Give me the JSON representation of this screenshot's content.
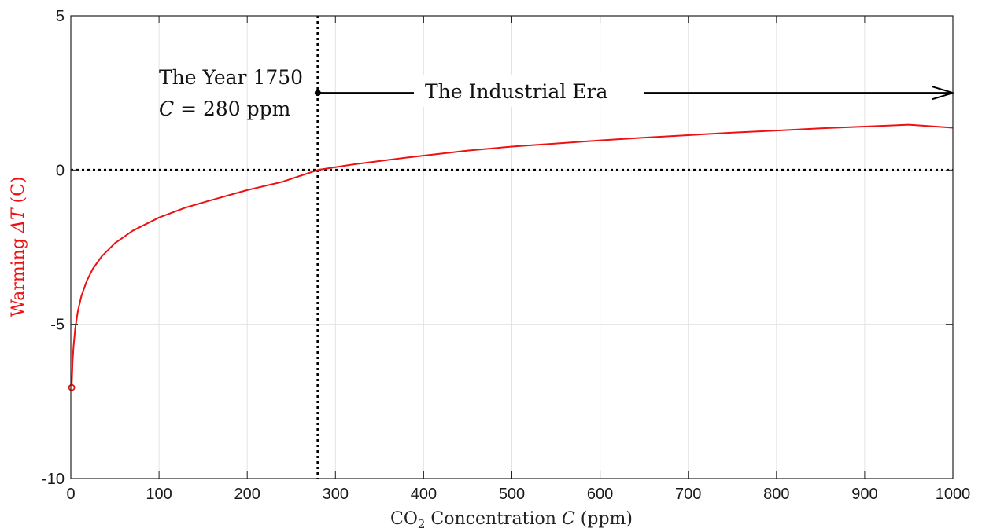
{
  "chart_data": {
    "type": "line",
    "xlabel": {
      "pre": "CO",
      "sub": "2",
      "post": " Concentration ",
      "var": "C",
      "unit": " (ppm)"
    },
    "ylabel": {
      "pre": "Warming ",
      "var": "ΔT",
      "unit": " (C)"
    },
    "xlim": [
      0,
      1000
    ],
    "ylim": [
      -10,
      5
    ],
    "xticks": [
      0,
      100,
      200,
      300,
      400,
      500,
      600,
      700,
      800,
      900,
      1000
    ],
    "yticks": [
      -10,
      -5,
      0,
      5
    ],
    "xtick_labels": [
      "0",
      "100",
      "200",
      "300",
      "400",
      "500",
      "600",
      "700",
      "800",
      "900",
      "1000"
    ],
    "ytick_labels": [
      "-10",
      "-5",
      "0",
      "5"
    ],
    "grid": true,
    "series": [
      {
        "color": "#ee1111",
        "x": [
          1,
          2,
          3,
          5,
          8,
          12,
          18,
          25,
          35,
          50,
          70,
          100,
          130,
          160,
          200,
          240,
          280,
          320,
          380,
          450,
          500,
          550,
          600,
          650,
          700,
          750,
          800,
          850,
          900,
          950,
          1000
        ],
        "y": [
          -7.05,
          -6.22,
          -5.74,
          -5.13,
          -4.57,
          -4.08,
          -3.6,
          -3.2,
          -2.8,
          -2.37,
          -1.97,
          -1.54,
          -1.22,
          -0.97,
          -0.65,
          -0.38,
          0.0,
          0.18,
          0.4,
          0.63,
          0.76,
          0.86,
          0.96,
          1.05,
          1.13,
          1.21,
          1.28,
          1.35,
          1.41,
          1.47,
          1.37
        ]
      }
    ],
    "start_marker": {
      "x": 1,
      "y": -7.05,
      "color": "#ee1111"
    },
    "reference_lines": {
      "vertical_x": 280,
      "horizontal_y": 0,
      "style": "dotted",
      "color": "#000000"
    },
    "annotations": {
      "year_line1": "The Year 1750",
      "year_line2_var": "C",
      "year_line2_rest": " = 280 ppm",
      "era_label": "The Industrial Era",
      "era_arrow": {
        "x_start": 280,
        "x_end": 1000,
        "y": 2.5
      }
    }
  }
}
